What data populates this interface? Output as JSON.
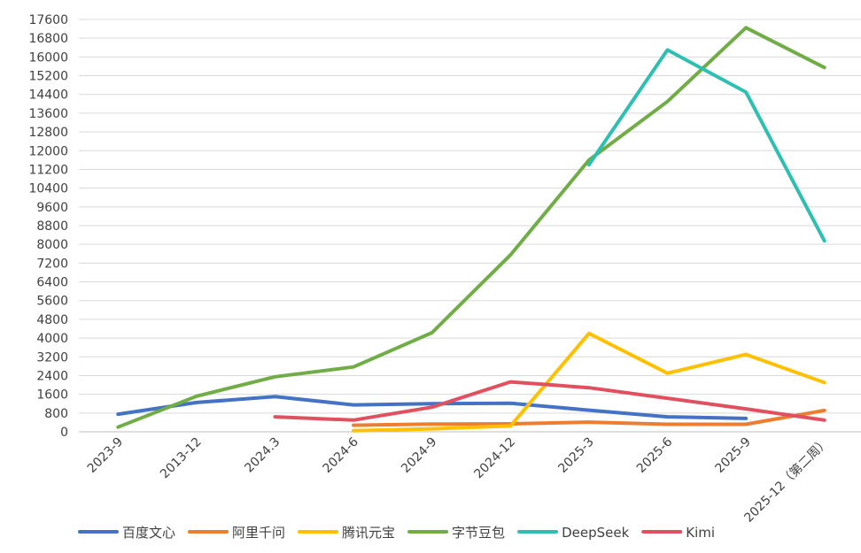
{
  "chart_data": {
    "type": "line",
    "categories": [
      "2023-9",
      "2013-12",
      "2024.3",
      "2024-6",
      "2024-9",
      "2024-12",
      "2025-3",
      "2025-6",
      "2025-9",
      "2025-12（第二周）"
    ],
    "y_ticks": [
      0,
      800,
      1600,
      2400,
      3200,
      4000,
      4800,
      5600,
      6400,
      7200,
      8000,
      8800,
      9600,
      10400,
      11200,
      12000,
      12800,
      13600,
      14400,
      15200,
      16000,
      16800,
      17600
    ],
    "ylim": [
      0,
      17600
    ],
    "grid": "horizontal",
    "legend_position": "bottom",
    "series": [
      {
        "name": "百度文心",
        "color": "#4472C4",
        "values": [
          750,
          1250,
          1500,
          1150,
          1200,
          1220,
          920,
          640,
          570,
          null
        ]
      },
      {
        "name": "阿里千问",
        "color": "#ED7D31",
        "values": [
          null,
          null,
          null,
          280,
          330,
          340,
          410,
          320,
          320,
          910
        ]
      },
      {
        "name": "腾讯元宝",
        "color": "#FFC000",
        "values": [
          null,
          null,
          null,
          50,
          130,
          250,
          4200,
          2500,
          3300,
          2100
        ]
      },
      {
        "name": "字节豆包",
        "color": "#70AD47",
        "values": [
          200,
          1520,
          2350,
          2770,
          4230,
          7550,
          11600,
          14100,
          17250,
          15550
        ]
      },
      {
        "name": "DeepSeek",
        "color": "#2EBFB3",
        "values": [
          null,
          null,
          null,
          null,
          null,
          null,
          11400,
          16300,
          14500,
          8150
        ]
      },
      {
        "name": "Kimi",
        "color": "#E0505F",
        "values": [
          null,
          null,
          640,
          500,
          1050,
          2130,
          1880,
          1430,
          980,
          500
        ]
      }
    ]
  }
}
